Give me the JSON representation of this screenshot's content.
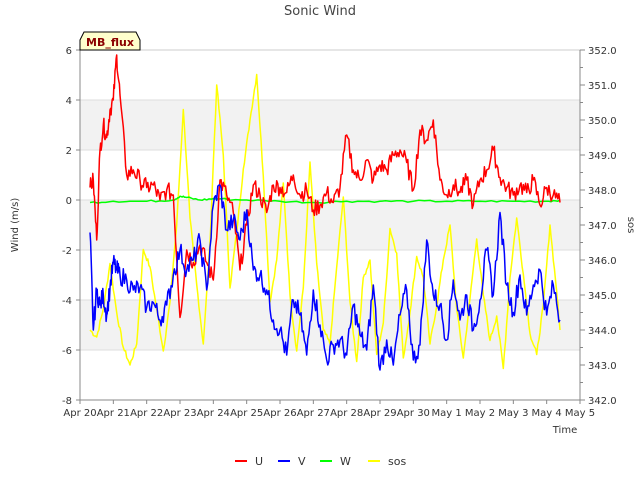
{
  "chart_data": {
    "type": "line",
    "title": "Sonic Wind",
    "xlabel": "Time",
    "ylabel": "Wind (m/s)",
    "y2label": "sos",
    "badge": "MB_flux",
    "x_ticks": [
      "Apr 20",
      "Apr 21",
      "Apr 22",
      "Apr 23",
      "Apr 24",
      "Apr 25",
      "Apr 26",
      "Apr 27",
      "Apr 28",
      "Apr 29",
      "Apr 30",
      "May 1",
      "May 2",
      "May 3",
      "May 4",
      "May 5"
    ],
    "xlim": [
      0,
      15
    ],
    "ylim": [
      -8,
      6
    ],
    "y_ticks": [
      -8,
      -6,
      -4,
      -2,
      0,
      2,
      4,
      6
    ],
    "y2lim": [
      342.0,
      352.0
    ],
    "y2_ticks": [
      "342.0",
      "343.0",
      "344.0",
      "345.0",
      "346.0",
      "347.0",
      "348.0",
      "349.0",
      "350.0",
      "351.0",
      "352.0"
    ],
    "legend": {
      "position": "bottom"
    },
    "series": [
      {
        "name": "U",
        "color": "#ff0000",
        "axis": "left",
        "x": [
          0.3,
          0.4,
          0.5,
          0.6,
          0.7,
          0.8,
          0.9,
          1.0,
          1.1,
          1.2,
          1.4,
          1.6,
          1.8,
          2.0,
          2.2,
          2.4,
          2.6,
          2.8,
          3.0,
          3.2,
          3.4,
          3.6,
          3.8,
          4.0,
          4.2,
          4.4,
          4.6,
          4.8,
          5.0,
          5.2,
          5.4,
          5.6,
          5.8,
          6.0,
          6.2,
          6.4,
          6.6,
          6.8,
          7.0,
          7.2,
          7.4,
          7.6,
          7.8,
          8.0,
          8.2,
          8.4,
          8.6,
          8.8,
          9.0,
          9.2,
          9.4,
          9.6,
          9.8,
          10.0,
          10.2,
          10.4,
          10.6,
          10.8,
          11.0,
          11.2,
          11.4,
          11.6,
          11.8,
          12.0,
          12.2,
          12.4,
          12.6,
          12.8,
          13.0,
          13.2,
          13.4,
          13.6,
          13.8,
          14.0,
          14.2,
          14.4
        ],
        "y": [
          0.5,
          0.8,
          -1.6,
          2.0,
          3.0,
          2.5,
          3.6,
          4.0,
          5.8,
          4.2,
          1.0,
          1.2,
          0.8,
          0.5,
          0.6,
          0.0,
          0.4,
          0.2,
          -4.7,
          -2.0,
          -2.5,
          -1.8,
          -2.5,
          -3.2,
          0.8,
          0.2,
          -0.5,
          -2.8,
          -1.0,
          0.6,
          0.2,
          -0.5,
          0.6,
          0.5,
          0.3,
          1.0,
          0.2,
          0.4,
          -0.4,
          -0.2,
          0.3,
          -0.1,
          0.5,
          2.6,
          1.2,
          0.8,
          1.6,
          0.8,
          1.4,
          1.2,
          1.8,
          2.0,
          1.5,
          0.4,
          2.8,
          2.4,
          3.2,
          0.8,
          0.2,
          0.6,
          0.3,
          0.8,
          -0.2,
          0.8,
          1.2,
          2.0,
          0.9,
          0.5,
          0.2,
          0.6,
          0.3,
          0.8,
          -0.2,
          0.5,
          0.2,
          -0.1
        ]
      },
      {
        "name": "V",
        "color": "#0000ff",
        "axis": "left",
        "x": [
          0.3,
          0.4,
          0.5,
          0.6,
          0.7,
          0.8,
          0.9,
          1.0,
          1.1,
          1.2,
          1.4,
          1.6,
          1.8,
          2.0,
          2.2,
          2.4,
          2.6,
          2.8,
          3.0,
          3.2,
          3.4,
          3.6,
          3.8,
          4.0,
          4.2,
          4.4,
          4.6,
          4.8,
          5.0,
          5.2,
          5.4,
          5.6,
          5.8,
          6.0,
          6.2,
          6.4,
          6.6,
          6.8,
          7.0,
          7.2,
          7.4,
          7.6,
          7.8,
          8.0,
          8.2,
          8.4,
          8.6,
          8.8,
          9.0,
          9.2,
          9.4,
          9.6,
          9.8,
          10.0,
          10.2,
          10.4,
          10.6,
          10.8,
          11.0,
          11.2,
          11.4,
          11.6,
          11.8,
          12.0,
          12.2,
          12.4,
          12.6,
          12.8,
          13.0,
          13.2,
          13.4,
          13.6,
          13.8,
          14.0,
          14.2,
          14.4
        ],
        "y": [
          -1.3,
          -5.2,
          -3.6,
          -4.2,
          -3.8,
          -4.6,
          -3.5,
          -2.5,
          -2.8,
          -3.0,
          -3.2,
          -3.6,
          -3.5,
          -4.3,
          -4.1,
          -4.8,
          -4.2,
          -3.0,
          -2.0,
          -2.8,
          -2.4,
          -1.6,
          -3.6,
          -0.2,
          0.6,
          -1.2,
          -0.8,
          -1.6,
          -0.4,
          -2.8,
          -3.0,
          -3.6,
          -4.8,
          -5.2,
          -6.2,
          -4.0,
          -4.6,
          -6.2,
          -3.6,
          -5.0,
          -6.4,
          -5.8,
          -5.6,
          -6.2,
          -4.2,
          -5.4,
          -6.0,
          -3.4,
          -6.8,
          -5.6,
          -6.6,
          -4.6,
          -3.6,
          -6.4,
          -5.8,
          -1.6,
          -3.8,
          -4.2,
          -5.6,
          -3.2,
          -4.8,
          -3.8,
          -5.2,
          -4.0,
          -2.0,
          -3.8,
          -0.5,
          -3.4,
          -4.5,
          -3.0,
          -4.6,
          -3.4,
          -2.8,
          -4.6,
          -3.4,
          -4.8
        ]
      },
      {
        "name": "W",
        "color": "#00ff00",
        "axis": "left",
        "x": [
          0.3,
          1.0,
          2.0,
          2.8,
          3.0,
          3.2,
          3.6,
          4.0,
          5.0,
          6.0,
          7.0,
          8.0,
          9.0,
          10.0,
          11.0,
          12.0,
          13.0,
          14.0,
          14.4
        ],
        "y": [
          -0.1,
          -0.05,
          -0.05,
          0.0,
          0.15,
          0.1,
          0.0,
          0.05,
          0.0,
          -0.05,
          -0.1,
          -0.05,
          -0.05,
          -0.05,
          -0.05,
          -0.05,
          -0.05,
          -0.05,
          0.0
        ]
      },
      {
        "name": "sos",
        "color": "#ffff00",
        "axis": "right",
        "x": [
          0.3,
          0.5,
          0.7,
          0.9,
          1.1,
          1.3,
          1.5,
          1.7,
          1.9,
          2.1,
          2.3,
          2.5,
          2.7,
          2.9,
          3.1,
          3.3,
          3.5,
          3.7,
          3.9,
          4.1,
          4.3,
          4.5,
          4.7,
          4.9,
          5.1,
          5.3,
          5.5,
          5.7,
          5.9,
          6.1,
          6.3,
          6.5,
          6.7,
          6.9,
          7.1,
          7.3,
          7.5,
          7.7,
          7.9,
          8.1,
          8.3,
          8.5,
          8.7,
          8.9,
          9.1,
          9.3,
          9.5,
          9.7,
          9.9,
          10.1,
          10.3,
          10.5,
          10.7,
          10.9,
          11.1,
          11.3,
          11.5,
          11.7,
          11.9,
          12.1,
          12.3,
          12.5,
          12.7,
          12.9,
          13.1,
          13.3,
          13.5,
          13.7,
          13.9,
          14.1,
          14.3,
          14.4
        ],
        "y": [
          344.0,
          343.8,
          344.6,
          345.9,
          344.5,
          343.5,
          343.0,
          343.6,
          346.3,
          345.8,
          344.6,
          343.4,
          344.8,
          347.0,
          350.3,
          347.2,
          345.3,
          343.6,
          346.5,
          351.0,
          349.0,
          345.2,
          346.8,
          348.6,
          350.0,
          351.3,
          348.4,
          344.8,
          346.0,
          348.2,
          345.0,
          343.4,
          345.2,
          348.8,
          345.9,
          344.0,
          343.6,
          345.8,
          347.8,
          344.8,
          343.1,
          345.5,
          346.0,
          343.3,
          344.2,
          346.9,
          346.2,
          343.2,
          344.5,
          346.1,
          345.5,
          343.6,
          344.7,
          346.0,
          347.0,
          344.6,
          343.2,
          344.9,
          346.6,
          345.0,
          343.7,
          344.4,
          342.9,
          345.5,
          347.2,
          345.6,
          343.9,
          343.3,
          344.7,
          347.0,
          345.1,
          344.0
        ]
      }
    ]
  },
  "ui": {
    "colors": {
      "band": "#f2f2f2",
      "grid": "#dddddd",
      "axis": "#888888",
      "badge_bg": "#ffffcc"
    }
  }
}
